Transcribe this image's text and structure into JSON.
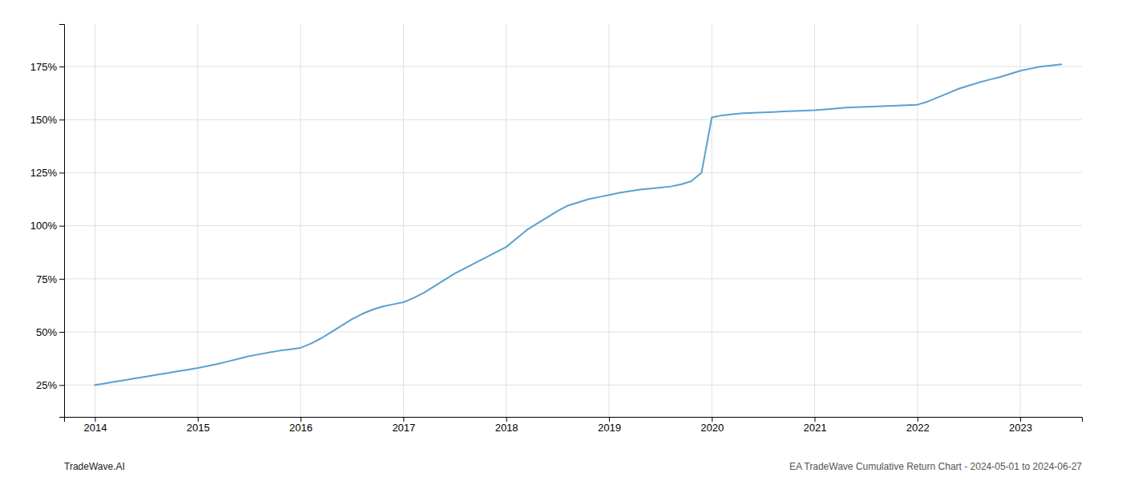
{
  "chart_data": {
    "type": "line",
    "annotations": [
      "TradeWave.AI",
      "EA TradeWave Cumulative Return Chart - 2024-05-01 to 2024-06-27"
    ],
    "x": [
      2014.0,
      2014.1,
      2014.2,
      2014.3,
      2014.4,
      2014.5,
      2014.6,
      2014.7,
      2014.8,
      2014.9,
      2015.0,
      2015.1,
      2015.2,
      2015.3,
      2015.4,
      2015.5,
      2015.6,
      2015.7,
      2015.8,
      2015.9,
      2016.0,
      2016.1,
      2016.2,
      2016.3,
      2016.4,
      2016.5,
      2016.6,
      2016.7,
      2016.8,
      2016.9,
      2017.0,
      2017.1,
      2017.2,
      2017.3,
      2017.4,
      2017.5,
      2017.6,
      2017.7,
      2017.8,
      2017.9,
      2018.0,
      2018.1,
      2018.2,
      2018.3,
      2018.4,
      2018.5,
      2018.6,
      2018.7,
      2018.8,
      2018.9,
      2019.0,
      2019.1,
      2019.2,
      2019.3,
      2019.4,
      2019.5,
      2019.6,
      2019.7,
      2019.8,
      2019.9,
      2020.0,
      2020.1,
      2020.2,
      2020.3,
      2020.4,
      2020.5,
      2020.6,
      2020.7,
      2020.8,
      2020.9,
      2021.0,
      2021.1,
      2021.2,
      2021.3,
      2021.4,
      2021.5,
      2021.6,
      2021.7,
      2021.8,
      2021.9,
      2022.0,
      2022.1,
      2022.2,
      2022.3,
      2022.4,
      2022.5,
      2022.6,
      2022.7,
      2022.8,
      2022.9,
      2023.0,
      2023.1,
      2023.2,
      2023.3,
      2023.4
    ],
    "values": [
      25.0,
      25.8,
      26.6,
      27.4,
      28.2,
      29.0,
      29.8,
      30.6,
      31.4,
      32.2,
      33.0,
      34.0,
      35.0,
      36.2,
      37.4,
      38.6,
      39.5,
      40.4,
      41.2,
      41.8,
      42.5,
      44.5,
      47.0,
      50.0,
      53.0,
      56.0,
      58.5,
      60.5,
      62.0,
      63.0,
      64.0,
      66.0,
      68.5,
      71.5,
      74.5,
      77.5,
      80.0,
      82.5,
      85.0,
      87.5,
      90.0,
      94.0,
      98.0,
      101.0,
      104.0,
      107.0,
      109.5,
      111.0,
      112.5,
      113.5,
      114.5,
      115.5,
      116.3,
      117.0,
      117.5,
      118.0,
      118.5,
      119.5,
      121.0,
      125.0,
      151.0,
      152.0,
      152.5,
      153.0,
      153.2,
      153.4,
      153.6,
      153.8,
      154.0,
      154.2,
      154.4,
      154.8,
      155.2,
      155.6,
      155.8,
      156.0,
      156.2,
      156.4,
      156.6,
      156.8,
      157.0,
      158.5,
      160.5,
      162.5,
      164.5,
      166.0,
      167.5,
      168.8,
      170.0,
      171.5,
      173.0,
      174.0,
      175.0,
      175.5,
      176.0
    ],
    "color": "#5aa0d0",
    "xlim": [
      2013.7,
      2023.6
    ],
    "ylim": [
      10.0,
      195.0
    ],
    "xticks": [
      2014,
      2015,
      2016,
      2017,
      2018,
      2019,
      2020,
      2021,
      2022,
      2023
    ],
    "yticks": [
      {
        "value": 25,
        "label": "25%"
      },
      {
        "value": 50,
        "label": "50%"
      },
      {
        "value": 75,
        "label": "75%"
      },
      {
        "value": 100,
        "label": "100%"
      },
      {
        "value": 125,
        "label": "125%"
      },
      {
        "value": 150,
        "label": "150%"
      },
      {
        "value": 175,
        "label": "175%"
      }
    ],
    "grid": true
  }
}
